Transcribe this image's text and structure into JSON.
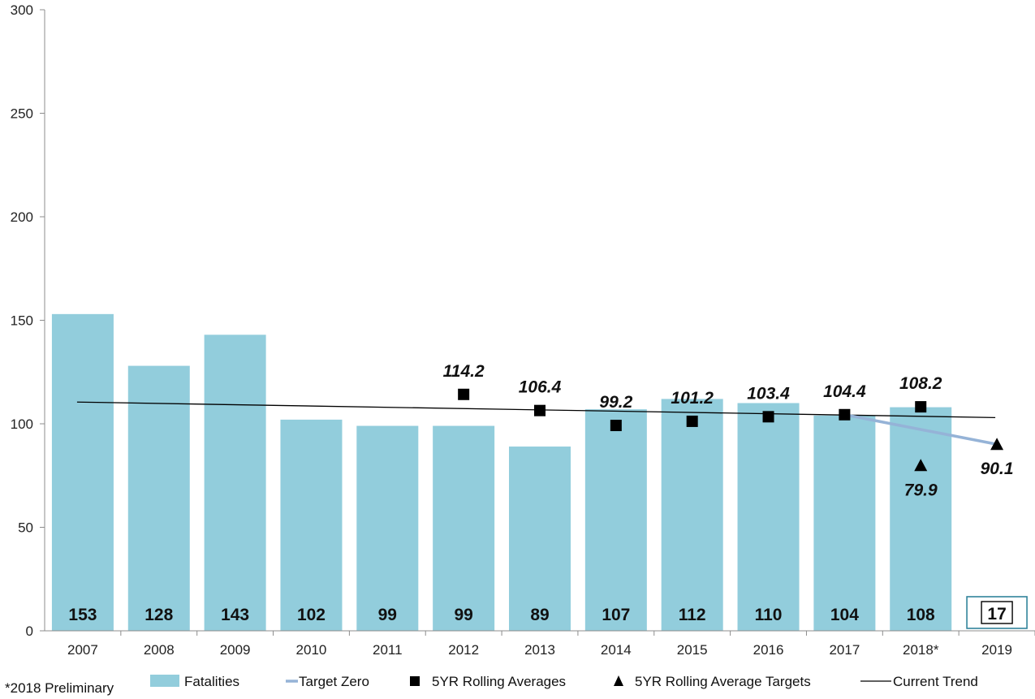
{
  "chart_data": {
    "type": "bar",
    "categories": [
      "2007",
      "2008",
      "2009",
      "2010",
      "2011",
      "2012",
      "2013",
      "2014",
      "2015",
      "2016",
      "2017",
      "2018*",
      "2019"
    ],
    "ylim": [
      0,
      300
    ],
    "yticks": [
      0,
      50,
      100,
      150,
      200,
      250,
      300
    ],
    "grid": false,
    "legend_position": "bottom",
    "series": [
      {
        "name": "Fatalities",
        "kind": "bar",
        "color": "#92cddc",
        "values": [
          153,
          128,
          143,
          102,
          99,
          99,
          89,
          107,
          112,
          110,
          104,
          108,
          null
        ],
        "labels": [
          "153",
          "128",
          "143",
          "102",
          "99",
          "99",
          "89",
          "107",
          "112",
          "110",
          "104",
          "108",
          ""
        ]
      },
      {
        "name": "Target Zero",
        "kind": "line",
        "color": "#95b3d7",
        "points": [
          {
            "x": "2017",
            "y": 104.4
          },
          {
            "x": "2019",
            "y": 90.1
          }
        ]
      },
      {
        "name": "5YR Rolling Averages",
        "kind": "marker-square",
        "color": "#000000",
        "points": [
          {
            "x": "2012",
            "y": 114.2,
            "label": "114.2"
          },
          {
            "x": "2013",
            "y": 106.4,
            "label": "106.4"
          },
          {
            "x": "2014",
            "y": 99.2,
            "label": "99.2"
          },
          {
            "x": "2015",
            "y": 101.2,
            "label": "101.2"
          },
          {
            "x": "2016",
            "y": 103.4,
            "label": "103.4"
          },
          {
            "x": "2017",
            "y": 104.4,
            "label": "104.4"
          },
          {
            "x": "2018*",
            "y": 108.2,
            "label": "108.2"
          }
        ]
      },
      {
        "name": "5YR Rolling Average Targets",
        "kind": "marker-triangle",
        "color": "#000000",
        "points": [
          {
            "x": "2018*",
            "y": 79.9,
            "label": "79.9"
          },
          {
            "x": "2019",
            "y": 90.1,
            "label": "90.1"
          }
        ]
      },
      {
        "name": "Current Trend",
        "kind": "trendline",
        "color": "#000000",
        "points": [
          {
            "x": "2007",
            "y": 110.5
          },
          {
            "x": "2019",
            "y": 103
          }
        ]
      }
    ],
    "annotations": [
      {
        "x": "2019",
        "text": "17",
        "style": "boxed"
      }
    ],
    "footnote": "*2018 Preliminary"
  }
}
